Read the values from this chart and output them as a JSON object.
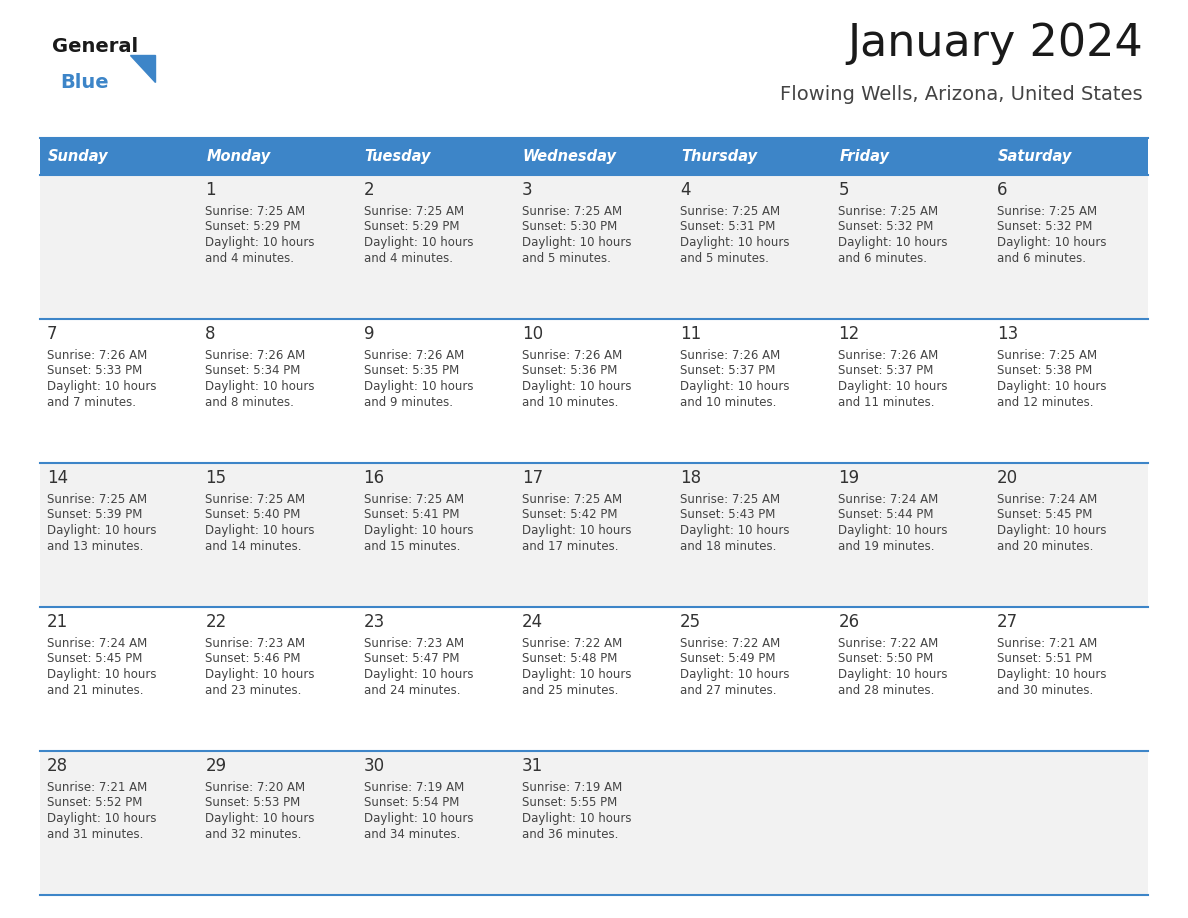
{
  "title": "January 2024",
  "subtitle": "Flowing Wells, Arizona, United States",
  "days_of_week": [
    "Sunday",
    "Monday",
    "Tuesday",
    "Wednesday",
    "Thursday",
    "Friday",
    "Saturday"
  ],
  "header_bg": "#3d85c8",
  "header_text": "#ffffff",
  "row_bg_odd": "#f2f2f2",
  "row_bg_even": "#ffffff",
  "cell_text_color": "#444444",
  "day_num_color": "#333333",
  "divider_color": "#3d85c8",
  "calendar_data": [
    [
      {
        "day": "",
        "sunrise": "",
        "sunset": "",
        "daylight": ""
      },
      {
        "day": "1",
        "sunrise": "7:25 AM",
        "sunset": "5:29 PM",
        "daylight": "10 hours and 4 minutes."
      },
      {
        "day": "2",
        "sunrise": "7:25 AM",
        "sunset": "5:29 PM",
        "daylight": "10 hours and 4 minutes."
      },
      {
        "day": "3",
        "sunrise": "7:25 AM",
        "sunset": "5:30 PM",
        "daylight": "10 hours and 5 minutes."
      },
      {
        "day": "4",
        "sunrise": "7:25 AM",
        "sunset": "5:31 PM",
        "daylight": "10 hours and 5 minutes."
      },
      {
        "day": "5",
        "sunrise": "7:25 AM",
        "sunset": "5:32 PM",
        "daylight": "10 hours and 6 minutes."
      },
      {
        "day": "6",
        "sunrise": "7:25 AM",
        "sunset": "5:32 PM",
        "daylight": "10 hours and 6 minutes."
      }
    ],
    [
      {
        "day": "7",
        "sunrise": "7:26 AM",
        "sunset": "5:33 PM",
        "daylight": "10 hours and 7 minutes."
      },
      {
        "day": "8",
        "sunrise": "7:26 AM",
        "sunset": "5:34 PM",
        "daylight": "10 hours and 8 minutes."
      },
      {
        "day": "9",
        "sunrise": "7:26 AM",
        "sunset": "5:35 PM",
        "daylight": "10 hours and 9 minutes."
      },
      {
        "day": "10",
        "sunrise": "7:26 AM",
        "sunset": "5:36 PM",
        "daylight": "10 hours and 10 minutes."
      },
      {
        "day": "11",
        "sunrise": "7:26 AM",
        "sunset": "5:37 PM",
        "daylight": "10 hours and 10 minutes."
      },
      {
        "day": "12",
        "sunrise": "7:26 AM",
        "sunset": "5:37 PM",
        "daylight": "10 hours and 11 minutes."
      },
      {
        "day": "13",
        "sunrise": "7:25 AM",
        "sunset": "5:38 PM",
        "daylight": "10 hours and 12 minutes."
      }
    ],
    [
      {
        "day": "14",
        "sunrise": "7:25 AM",
        "sunset": "5:39 PM",
        "daylight": "10 hours and 13 minutes."
      },
      {
        "day": "15",
        "sunrise": "7:25 AM",
        "sunset": "5:40 PM",
        "daylight": "10 hours and 14 minutes."
      },
      {
        "day": "16",
        "sunrise": "7:25 AM",
        "sunset": "5:41 PM",
        "daylight": "10 hours and 15 minutes."
      },
      {
        "day": "17",
        "sunrise": "7:25 AM",
        "sunset": "5:42 PM",
        "daylight": "10 hours and 17 minutes."
      },
      {
        "day": "18",
        "sunrise": "7:25 AM",
        "sunset": "5:43 PM",
        "daylight": "10 hours and 18 minutes."
      },
      {
        "day": "19",
        "sunrise": "7:24 AM",
        "sunset": "5:44 PM",
        "daylight": "10 hours and 19 minutes."
      },
      {
        "day": "20",
        "sunrise": "7:24 AM",
        "sunset": "5:45 PM",
        "daylight": "10 hours and 20 minutes."
      }
    ],
    [
      {
        "day": "21",
        "sunrise": "7:24 AM",
        "sunset": "5:45 PM",
        "daylight": "10 hours and 21 minutes."
      },
      {
        "day": "22",
        "sunrise": "7:23 AM",
        "sunset": "5:46 PM",
        "daylight": "10 hours and 23 minutes."
      },
      {
        "day": "23",
        "sunrise": "7:23 AM",
        "sunset": "5:47 PM",
        "daylight": "10 hours and 24 minutes."
      },
      {
        "day": "24",
        "sunrise": "7:22 AM",
        "sunset": "5:48 PM",
        "daylight": "10 hours and 25 minutes."
      },
      {
        "day": "25",
        "sunrise": "7:22 AM",
        "sunset": "5:49 PM",
        "daylight": "10 hours and 27 minutes."
      },
      {
        "day": "26",
        "sunrise": "7:22 AM",
        "sunset": "5:50 PM",
        "daylight": "10 hours and 28 minutes."
      },
      {
        "day": "27",
        "sunrise": "7:21 AM",
        "sunset": "5:51 PM",
        "daylight": "10 hours and 30 minutes."
      }
    ],
    [
      {
        "day": "28",
        "sunrise": "7:21 AM",
        "sunset": "5:52 PM",
        "daylight": "10 hours and 31 minutes."
      },
      {
        "day": "29",
        "sunrise": "7:20 AM",
        "sunset": "5:53 PM",
        "daylight": "10 hours and 32 minutes."
      },
      {
        "day": "30",
        "sunrise": "7:19 AM",
        "sunset": "5:54 PM",
        "daylight": "10 hours and 34 minutes."
      },
      {
        "day": "31",
        "sunrise": "7:19 AM",
        "sunset": "5:55 PM",
        "daylight": "10 hours and 36 minutes."
      },
      {
        "day": "",
        "sunrise": "",
        "sunset": "",
        "daylight": ""
      },
      {
        "day": "",
        "sunrise": "",
        "sunset": "",
        "daylight": ""
      },
      {
        "day": "",
        "sunrise": "",
        "sunset": "",
        "daylight": ""
      }
    ]
  ],
  "logo_general_color": "#1a1a1a",
  "logo_blue_color": "#3d85c8",
  "logo_triangle_color": "#3d85c8",
  "title_color": "#1a1a1a",
  "subtitle_color": "#444444"
}
